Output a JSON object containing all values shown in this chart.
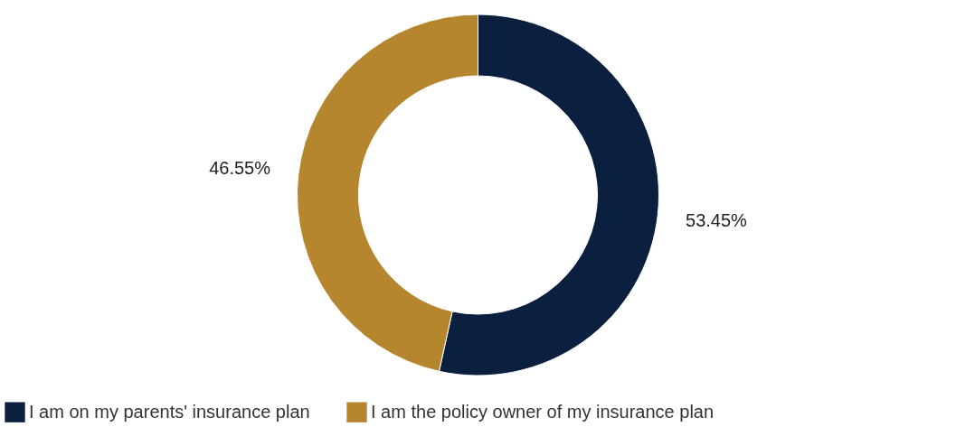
{
  "chart_data": {
    "type": "donut",
    "categories": [
      "I am on my parents' insurance plan",
      "I am the policy owner of my insurance plan"
    ],
    "values": [
      53.45,
      46.55
    ],
    "colors": [
      "#0b1f3f",
      "#b5862e"
    ],
    "value_labels": [
      "53.45%",
      "46.55%"
    ],
    "legend": "bottom"
  }
}
